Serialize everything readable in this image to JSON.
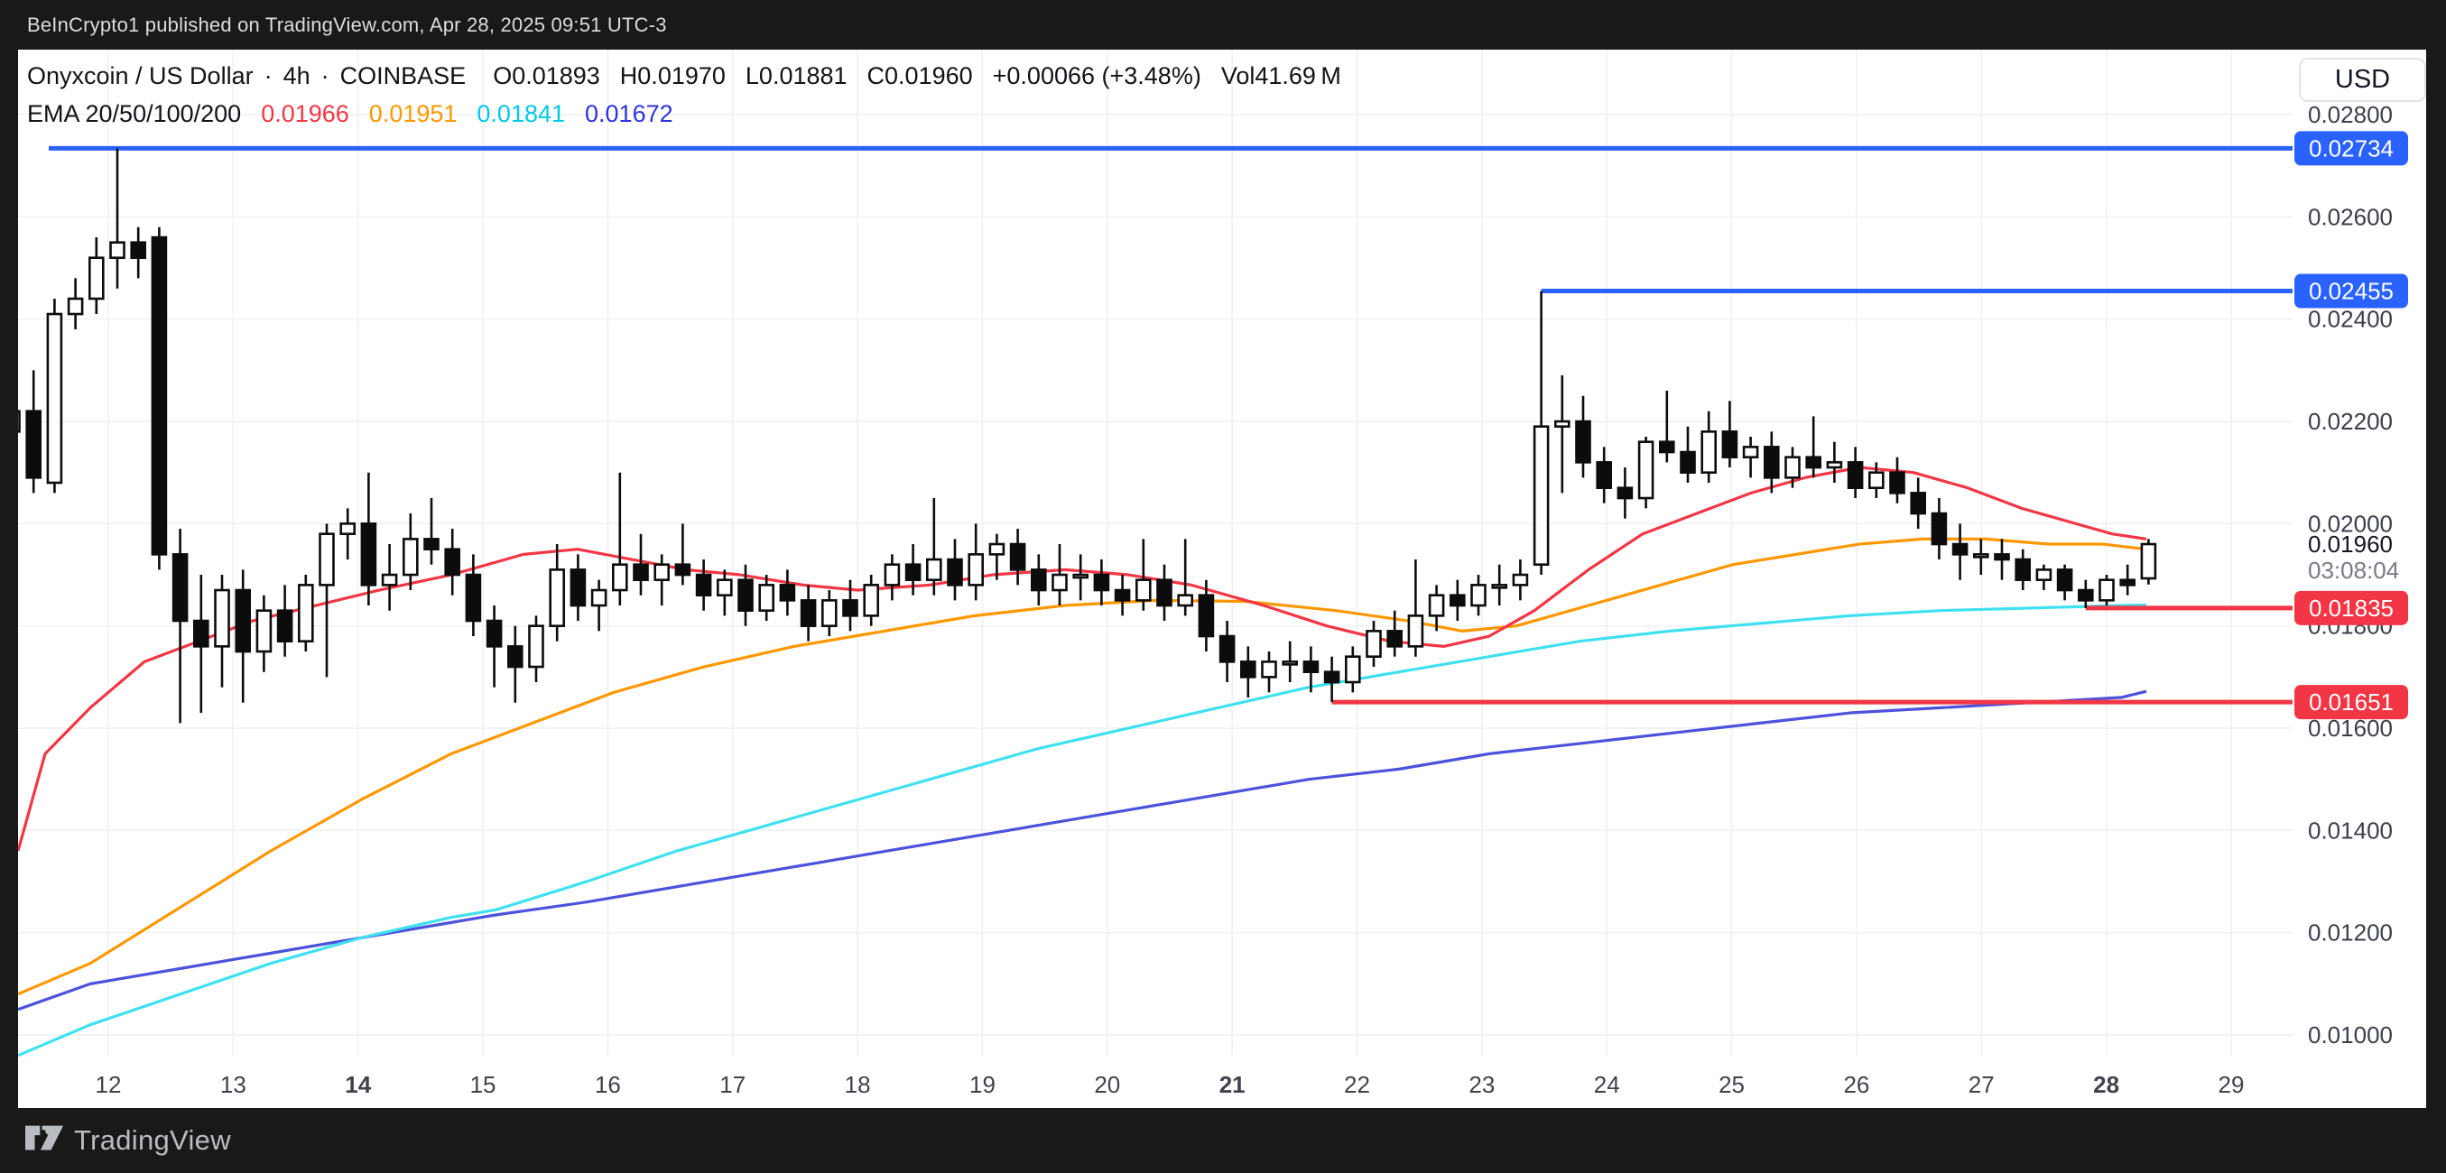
{
  "banner": {
    "text": "BeInCrypto1 published on TradingView.com, Apr 28, 2025 09:51 UTC-3"
  },
  "symbol_row": {
    "name": "Onyxcoin / US Dollar",
    "sep": "·",
    "interval": "4h",
    "exchange": "COINBASE",
    "ohlc": [
      {
        "label": "O",
        "value": "0.01893"
      },
      {
        "label": "H",
        "value": "0.01970"
      },
      {
        "label": "L",
        "value": "0.01881"
      },
      {
        "label": "C",
        "value": "0.01960"
      }
    ],
    "change": "+0.00066 (+3.48%)",
    "volume_label": "Vol",
    "volume": "41.69 M"
  },
  "ema_row": {
    "label": "EMA 20/50/100/200",
    "values": [
      {
        "text": "0.01966",
        "color": "#F23645"
      },
      {
        "text": "0.01951",
        "color": "#FF9800"
      },
      {
        "text": "0.01841",
        "color": "#00C9E8"
      },
      {
        "text": "0.01672",
        "color": "#2E32E0"
      }
    ]
  },
  "currency_button": "USD",
  "watermark": "TradingView",
  "chart_data": {
    "type": "candlestick",
    "title": "Onyxcoin / US Dollar · 4h · COINBASE",
    "ylim": [
      0.0095,
      0.0293
    ],
    "grid": true,
    "y_axis": {
      "tick_values": [
        0.028,
        0.026,
        0.024,
        0.022,
        0.02,
        0.018,
        0.016,
        0.014,
        0.012,
        0.01
      ],
      "decimals": 5
    },
    "x_axis": {
      "dates": [
        {
          "label": "12",
          "bold": false
        },
        {
          "label": "13",
          "bold": false
        },
        {
          "label": "14",
          "bold": true
        },
        {
          "label": "15",
          "bold": false
        },
        {
          "label": "16",
          "bold": false
        },
        {
          "label": "17",
          "bold": false
        },
        {
          "label": "18",
          "bold": false
        },
        {
          "label": "19",
          "bold": false
        },
        {
          "label": "20",
          "bold": false
        },
        {
          "label": "21",
          "bold": true
        },
        {
          "label": "22",
          "bold": false
        },
        {
          "label": "23",
          "bold": false
        },
        {
          "label": "24",
          "bold": false
        },
        {
          "label": "25",
          "bold": false
        },
        {
          "label": "26",
          "bold": false
        },
        {
          "label": "27",
          "bold": false
        },
        {
          "label": "28",
          "bold": true
        },
        {
          "label": "29",
          "bold": false
        }
      ]
    },
    "candles": [
      [
        0.0218,
        0.0228,
        0.0206,
        0.0222
      ],
      [
        0.0222,
        0.023,
        0.0206,
        0.0209
      ],
      [
        0.0208,
        0.0244,
        0.0206,
        0.0241
      ],
      [
        0.0241,
        0.0248,
        0.0238,
        0.0244
      ],
      [
        0.0244,
        0.0256,
        0.0241,
        0.0252
      ],
      [
        0.0252,
        0.02734,
        0.0246,
        0.0255
      ],
      [
        0.0255,
        0.0258,
        0.0248,
        0.0252
      ],
      [
        0.0256,
        0.0258,
        0.0191,
        0.0194
      ],
      [
        0.0194,
        0.0199,
        0.0161,
        0.0181
      ],
      [
        0.0181,
        0.019,
        0.0163,
        0.0176
      ],
      [
        0.0176,
        0.019,
        0.0168,
        0.0187
      ],
      [
        0.0187,
        0.0191,
        0.0165,
        0.0175
      ],
      [
        0.0175,
        0.0186,
        0.0171,
        0.0183
      ],
      [
        0.0183,
        0.0188,
        0.0174,
        0.0177
      ],
      [
        0.0177,
        0.019,
        0.0175,
        0.0188
      ],
      [
        0.0188,
        0.02,
        0.017,
        0.0198
      ],
      [
        0.0198,
        0.0203,
        0.0193,
        0.02
      ],
      [
        0.02,
        0.021,
        0.0184,
        0.0188
      ],
      [
        0.0188,
        0.0196,
        0.0183,
        0.019
      ],
      [
        0.019,
        0.0202,
        0.0187,
        0.0197
      ],
      [
        0.0197,
        0.0205,
        0.0192,
        0.0195
      ],
      [
        0.0195,
        0.0199,
        0.0186,
        0.019
      ],
      [
        0.019,
        0.0194,
        0.0178,
        0.0181
      ],
      [
        0.0181,
        0.0184,
        0.0168,
        0.0176
      ],
      [
        0.0176,
        0.018,
        0.0165,
        0.0172
      ],
      [
        0.0172,
        0.0182,
        0.0169,
        0.018
      ],
      [
        0.018,
        0.0196,
        0.0177,
        0.0191
      ],
      [
        0.0191,
        0.0194,
        0.0181,
        0.0184
      ],
      [
        0.0184,
        0.0189,
        0.0179,
        0.0187
      ],
      [
        0.0187,
        0.021,
        0.0184,
        0.0192
      ],
      [
        0.0192,
        0.0198,
        0.0186,
        0.0189
      ],
      [
        0.0189,
        0.0194,
        0.0184,
        0.0192
      ],
      [
        0.0192,
        0.02,
        0.0188,
        0.019
      ],
      [
        0.019,
        0.0193,
        0.0183,
        0.0186
      ],
      [
        0.0186,
        0.0191,
        0.0182,
        0.0189
      ],
      [
        0.0189,
        0.0192,
        0.018,
        0.0183
      ],
      [
        0.0183,
        0.019,
        0.0181,
        0.0188
      ],
      [
        0.0188,
        0.0191,
        0.0182,
        0.0185
      ],
      [
        0.0185,
        0.0188,
        0.0177,
        0.018
      ],
      [
        0.018,
        0.0187,
        0.0178,
        0.0185
      ],
      [
        0.0185,
        0.0189,
        0.0179,
        0.0182
      ],
      [
        0.0182,
        0.019,
        0.018,
        0.0188
      ],
      [
        0.0188,
        0.0194,
        0.0185,
        0.0192
      ],
      [
        0.0192,
        0.0196,
        0.0186,
        0.0189
      ],
      [
        0.0189,
        0.0205,
        0.0186,
        0.0193
      ],
      [
        0.0193,
        0.0197,
        0.0185,
        0.0188
      ],
      [
        0.0188,
        0.02,
        0.0185,
        0.0194
      ],
      [
        0.0194,
        0.0198,
        0.0189,
        0.0196
      ],
      [
        0.0196,
        0.0199,
        0.0188,
        0.0191
      ],
      [
        0.0191,
        0.0194,
        0.0184,
        0.0187
      ],
      [
        0.0187,
        0.0196,
        0.0184,
        0.019
      ],
      [
        0.019,
        0.0194,
        0.0185,
        0.019
      ],
      [
        0.019,
        0.0193,
        0.0184,
        0.0187
      ],
      [
        0.0187,
        0.019,
        0.0182,
        0.0185
      ],
      [
        0.0185,
        0.0197,
        0.0183,
        0.0189
      ],
      [
        0.0189,
        0.0192,
        0.0181,
        0.0184
      ],
      [
        0.0184,
        0.0197,
        0.0182,
        0.0186
      ],
      [
        0.0186,
        0.0189,
        0.0175,
        0.0178
      ],
      [
        0.0178,
        0.0181,
        0.0169,
        0.0173
      ],
      [
        0.0173,
        0.0176,
        0.0166,
        0.017
      ],
      [
        0.017,
        0.0175,
        0.0167,
        0.0173
      ],
      [
        0.0173,
        0.0177,
        0.0169,
        0.0173
      ],
      [
        0.0173,
        0.0176,
        0.0167,
        0.0171
      ],
      [
        0.0171,
        0.0174,
        0.01651,
        0.0169
      ],
      [
        0.0169,
        0.0176,
        0.0167,
        0.0174
      ],
      [
        0.0174,
        0.0181,
        0.0172,
        0.0179
      ],
      [
        0.0179,
        0.0183,
        0.0174,
        0.0176
      ],
      [
        0.0176,
        0.0193,
        0.0174,
        0.0182
      ],
      [
        0.0182,
        0.0188,
        0.0179,
        0.0186
      ],
      [
        0.0186,
        0.0189,
        0.0181,
        0.0184
      ],
      [
        0.0184,
        0.019,
        0.0182,
        0.0188
      ],
      [
        0.0188,
        0.0192,
        0.0184,
        0.0188
      ],
      [
        0.0188,
        0.0193,
        0.0185,
        0.019
      ],
      [
        0.0192,
        0.02455,
        0.019,
        0.0219
      ],
      [
        0.0219,
        0.0229,
        0.0206,
        0.022
      ],
      [
        0.022,
        0.0225,
        0.0209,
        0.0212
      ],
      [
        0.0212,
        0.0215,
        0.0204,
        0.0207
      ],
      [
        0.0207,
        0.0211,
        0.0201,
        0.0205
      ],
      [
        0.0205,
        0.0217,
        0.0203,
        0.0216
      ],
      [
        0.0216,
        0.0226,
        0.0212,
        0.0214
      ],
      [
        0.0214,
        0.0219,
        0.0208,
        0.021
      ],
      [
        0.021,
        0.0222,
        0.0208,
        0.0218
      ],
      [
        0.0218,
        0.0224,
        0.0211,
        0.0213
      ],
      [
        0.0213,
        0.0217,
        0.0209,
        0.0215
      ],
      [
        0.0215,
        0.0218,
        0.0206,
        0.0209
      ],
      [
        0.0209,
        0.0215,
        0.0207,
        0.0213
      ],
      [
        0.0213,
        0.0221,
        0.0209,
        0.0211
      ],
      [
        0.0211,
        0.0216,
        0.0208,
        0.0212
      ],
      [
        0.0212,
        0.0215,
        0.0205,
        0.0207
      ],
      [
        0.0207,
        0.0212,
        0.0205,
        0.021
      ],
      [
        0.021,
        0.0213,
        0.0204,
        0.0206
      ],
      [
        0.0206,
        0.0209,
        0.0199,
        0.0202
      ],
      [
        0.0202,
        0.0205,
        0.0193,
        0.0196
      ],
      [
        0.0196,
        0.02,
        0.0189,
        0.0194
      ],
      [
        0.0194,
        0.0197,
        0.019,
        0.0194
      ],
      [
        0.0194,
        0.0197,
        0.0189,
        0.0193
      ],
      [
        0.0193,
        0.0195,
        0.0187,
        0.0189
      ],
      [
        0.0189,
        0.0192,
        0.0187,
        0.0191
      ],
      [
        0.0191,
        0.0192,
        0.0185,
        0.0187
      ],
      [
        0.0187,
        0.0189,
        0.01835,
        0.0185
      ],
      [
        0.0185,
        0.019,
        0.0184,
        0.0189
      ],
      [
        0.0189,
        0.0192,
        0.0186,
        0.0188
      ],
      [
        0.01893,
        0.0197,
        0.01881,
        0.0196
      ]
    ],
    "emas": [
      {
        "name": "EMA 200",
        "period": 200,
        "color": "#4C52DB",
        "last_value": 0.01672,
        "points": [
          [
            0,
            0.0105
          ],
          [
            100,
            0.011
          ],
          [
            200,
            0.0113
          ],
          [
            300,
            0.0116
          ],
          [
            400,
            0.0119
          ],
          [
            500,
            0.0122
          ],
          [
            550,
            0.01235
          ],
          [
            650,
            0.0126
          ],
          [
            750,
            0.0129
          ],
          [
            850,
            0.0132
          ],
          [
            950,
            0.0135
          ],
          [
            1050,
            0.0138
          ],
          [
            1150,
            0.0141
          ],
          [
            1250,
            0.0144
          ],
          [
            1350,
            0.0147
          ],
          [
            1450,
            0.015
          ],
          [
            1550,
            0.0152
          ],
          [
            1650,
            0.0155
          ],
          [
            1750,
            0.0157
          ],
          [
            1850,
            0.0159
          ],
          [
            1950,
            0.0161
          ],
          [
            2050,
            0.0163
          ],
          [
            2150,
            0.0164
          ],
          [
            2250,
            0.0165
          ],
          [
            2350,
            0.0166
          ],
          [
            2378,
            0.01672
          ]
        ]
      },
      {
        "name": "EMA 100",
        "period": 100,
        "color": "#3FE1F0",
        "last_value": 0.01841,
        "points": [
          [
            0,
            0.0096
          ],
          [
            100,
            0.0102
          ],
          [
            200,
            0.0108
          ],
          [
            300,
            0.0114
          ],
          [
            400,
            0.0119
          ],
          [
            500,
            0.0123
          ],
          [
            550,
            0.01245
          ],
          [
            650,
            0.013
          ],
          [
            750,
            0.0136
          ],
          [
            850,
            0.0141
          ],
          [
            950,
            0.0146
          ],
          [
            1050,
            0.0151
          ],
          [
            1150,
            0.0156
          ],
          [
            1250,
            0.016
          ],
          [
            1350,
            0.0164
          ],
          [
            1450,
            0.0168
          ],
          [
            1550,
            0.0171
          ],
          [
            1650,
            0.0174
          ],
          [
            1750,
            0.0177
          ],
          [
            1850,
            0.0179
          ],
          [
            1950,
            0.01805
          ],
          [
            2050,
            0.0182
          ],
          [
            2150,
            0.0183
          ],
          [
            2250,
            0.01835
          ],
          [
            2350,
            0.0184
          ],
          [
            2378,
            0.01841
          ]
        ]
      },
      {
        "name": "EMA 50",
        "period": 50,
        "color": "#FF9800",
        "last_value": 0.01951,
        "points": [
          [
            0,
            0.0108
          ],
          [
            100,
            0.0114
          ],
          [
            200,
            0.0125
          ],
          [
            300,
            0.0136
          ],
          [
            400,
            0.0146
          ],
          [
            500,
            0.0155
          ],
          [
            590,
            0.0161
          ],
          [
            680,
            0.0167
          ],
          [
            780,
            0.0172
          ],
          [
            880,
            0.0176
          ],
          [
            980,
            0.0179
          ],
          [
            1080,
            0.0182
          ],
          [
            1180,
            0.0184
          ],
          [
            1280,
            0.0185
          ],
          [
            1380,
            0.01848
          ],
          [
            1480,
            0.0183
          ],
          [
            1560,
            0.0181
          ],
          [
            1620,
            0.0179
          ],
          [
            1680,
            0.018
          ],
          [
            1740,
            0.0183
          ],
          [
            1800,
            0.0186
          ],
          [
            1860,
            0.0189
          ],
          [
            1920,
            0.0192
          ],
          [
            1990,
            0.0194
          ],
          [
            2060,
            0.0196
          ],
          [
            2130,
            0.0197
          ],
          [
            2200,
            0.0197
          ],
          [
            2270,
            0.0196
          ],
          [
            2330,
            0.0196
          ],
          [
            2378,
            0.0195
          ]
        ]
      },
      {
        "name": "EMA 20",
        "period": 20,
        "color": "#F23645",
        "last_value": 0.01966,
        "points": [
          [
            0,
            0.0136
          ],
          [
            50,
            0.0155
          ],
          [
            100,
            0.0164
          ],
          [
            160,
            0.0173
          ],
          [
            220,
            0.0177
          ],
          [
            280,
            0.0181
          ],
          [
            350,
            0.0184
          ],
          [
            420,
            0.0187
          ],
          [
            500,
            0.019
          ],
          [
            580,
            0.0194
          ],
          [
            640,
            0.0195
          ],
          [
            700,
            0.0193
          ],
          [
            760,
            0.0191
          ],
          [
            820,
            0.019
          ],
          [
            890,
            0.0188
          ],
          [
            950,
            0.0187
          ],
          [
            1030,
            0.0188
          ],
          [
            1100,
            0.019
          ],
          [
            1180,
            0.0191
          ],
          [
            1250,
            0.019
          ],
          [
            1320,
            0.0188
          ],
          [
            1400,
            0.0184
          ],
          [
            1470,
            0.018
          ],
          [
            1540,
            0.0177
          ],
          [
            1600,
            0.0176
          ],
          [
            1650,
            0.0178
          ],
          [
            1700,
            0.0183
          ],
          [
            1760,
            0.0191
          ],
          [
            1820,
            0.0198
          ],
          [
            1880,
            0.0202
          ],
          [
            1940,
            0.0206
          ],
          [
            2000,
            0.0209
          ],
          [
            2060,
            0.0211
          ],
          [
            2120,
            0.021
          ],
          [
            2180,
            0.0207
          ],
          [
            2240,
            0.0203
          ],
          [
            2300,
            0.02
          ],
          [
            2340,
            0.0198
          ],
          [
            2378,
            0.0197
          ]
        ]
      }
    ],
    "rays": [
      {
        "price": 0.02734,
        "color": "#2962FF",
        "anchor_x": 54,
        "label": "0.02734"
      },
      {
        "price": 0.02455,
        "color": "#2962FF",
        "anchor_candle": 73,
        "label": "0.02455"
      },
      {
        "price": 0.01835,
        "color": "#F23645",
        "anchor_candle": 99,
        "label": "0.01835"
      },
      {
        "price": 0.01651,
        "color": "#F23645",
        "anchor_candle": 63,
        "label": "0.01651"
      }
    ],
    "last_price": {
      "value": 0.0196,
      "label": "0.01960",
      "countdown": "03:08:04"
    }
  }
}
